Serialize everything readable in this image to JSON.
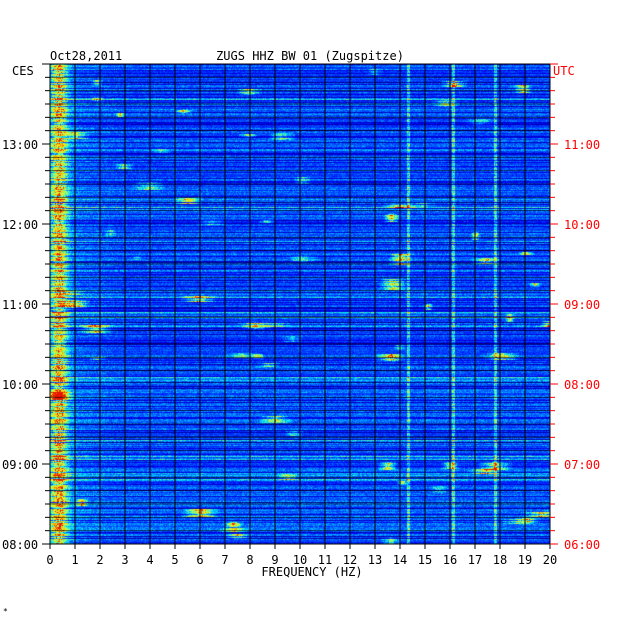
{
  "chart_data": {
    "type": "heatmap",
    "date": "Oct28,2011",
    "title": "ZUGS HHZ BW 01 (Zugspitze)",
    "xlabel": "FREQUENCY (HZ)",
    "xlim": [
      0,
      20
    ],
    "x_ticks": [
      "0",
      "1",
      "2",
      "3",
      "4",
      "5",
      "6",
      "7",
      "8",
      "9",
      "10",
      "11",
      "12",
      "13",
      "14",
      "15",
      "16",
      "17",
      "18",
      "19",
      "20"
    ],
    "left_timezone": "CES",
    "right_timezone": "UTC",
    "left_time_ticks": [
      "13:00",
      "12:00",
      "11:00",
      "10:00",
      "09:00",
      "08:00"
    ],
    "right_time_ticks": [
      "11:00",
      "10:00",
      "09:00",
      "08:00",
      "07:00",
      "06:00"
    ],
    "time_range_local": [
      "08:00",
      "14:00"
    ],
    "notable_bands_hz": [
      {
        "freq": 0.4,
        "note": "strong low-frequency energy, all hours"
      },
      {
        "freq": 14.3,
        "note": "narrow persistent line"
      },
      {
        "freq": 16.1,
        "note": "narrow line"
      },
      {
        "freq": 17.8,
        "note": "narrow line"
      }
    ],
    "colors": {
      "background": "#0000c8",
      "low": "#0000ff",
      "mid": "#00ffff",
      "high": "#ffff00",
      "peak": "#ff0000",
      "left_axis": "#000000",
      "right_axis": "#ff0000"
    }
  },
  "footer_mark": "*"
}
